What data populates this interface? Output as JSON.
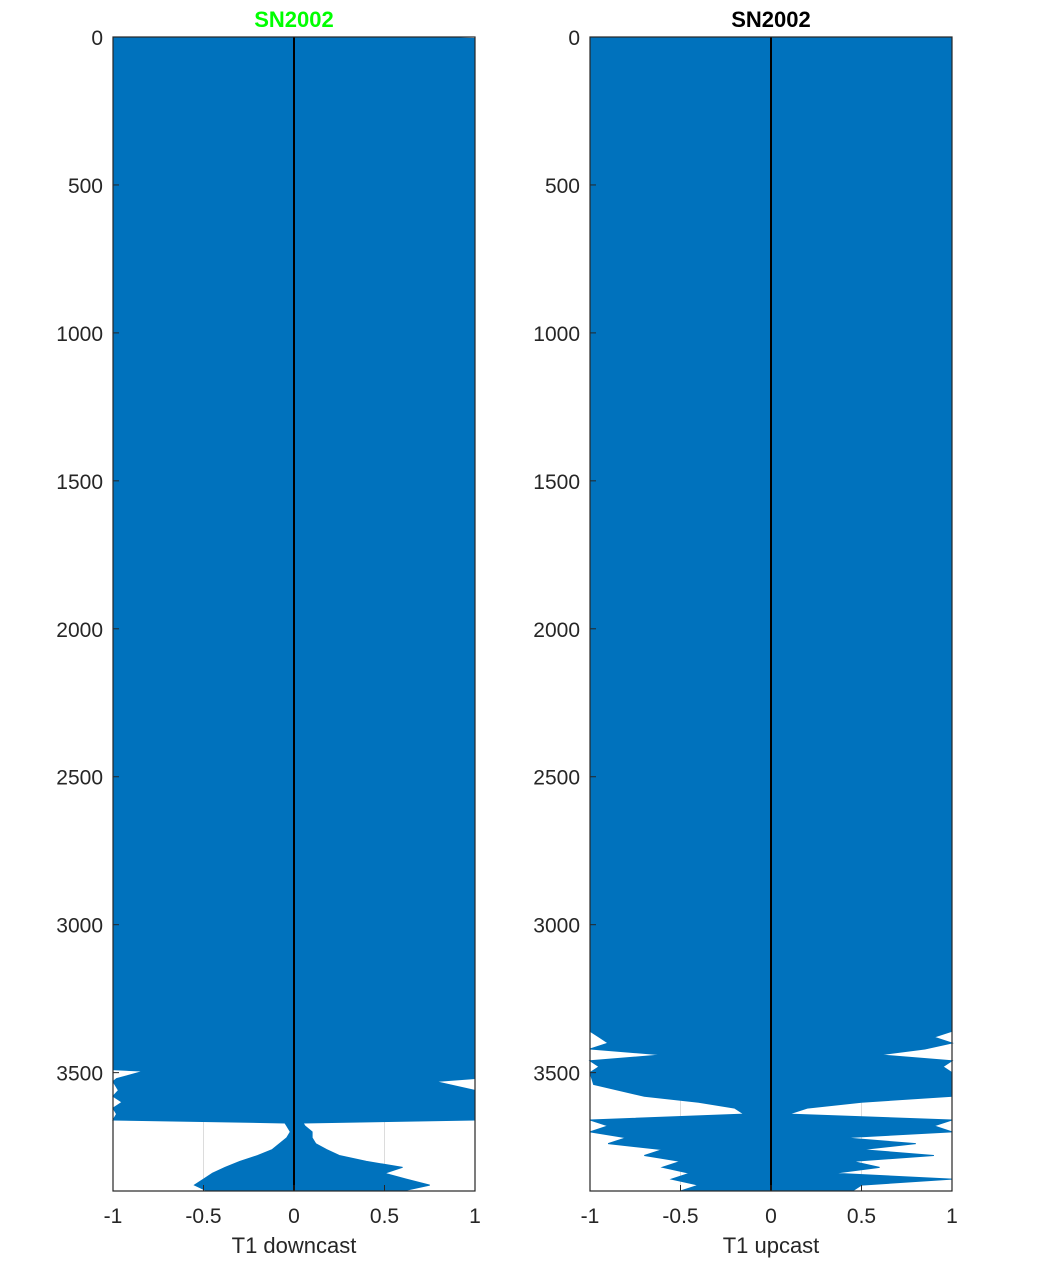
{
  "chart_data": [
    {
      "type": "area",
      "title": "SN2002",
      "title_color": "#00ff00",
      "xlabel": "T1 downcast",
      "ylabel": "",
      "xlim": [
        -1,
        1
      ],
      "ylim": [
        0,
        3900
      ],
      "y_reversed": true,
      "xticks": [
        -1,
        -0.5,
        0,
        0.5,
        1
      ],
      "xtick_labels": [
        "-1",
        "-0.5",
        "0",
        "0.5",
        "1"
      ],
      "yticks": [
        0,
        500,
        1000,
        1500,
        2000,
        2500,
        3000,
        3500
      ],
      "ytick_labels": [
        "0",
        "500",
        "1000",
        "1500",
        "2000",
        "2500",
        "3000",
        "3500"
      ],
      "grid": false,
      "fill_color": "#0072bd",
      "zero_line_color": "#000000",
      "series": [
        {
          "depth": [
            0,
            5,
            3490,
            3495,
            3520,
            3530,
            3560,
            3580,
            3600,
            3620,
            3640,
            3660,
            3670,
            3680,
            3690,
            3700,
            3720,
            3740,
            3760,
            3780,
            3800,
            3820,
            3840,
            3860,
            3880,
            3900
          ],
          "left": [
            -1,
            -1,
            -1,
            -0.83,
            -0.98,
            -1,
            -0.97,
            -1,
            -0.95,
            -1,
            -0.98,
            -1,
            -0.05,
            -0.04,
            -0.03,
            -0.02,
            -0.04,
            -0.08,
            -0.12,
            -0.2,
            -0.3,
            -0.38,
            -0.45,
            -0.5,
            -0.55,
            -0.48
          ],
          "right": [
            0.75,
            1,
            1,
            1,
            1,
            0.78,
            1,
            1,
            1,
            1,
            1,
            1,
            0.05,
            0.06,
            0.08,
            0.1,
            0.1,
            0.12,
            0.18,
            0.25,
            0.4,
            0.6,
            0.5,
            0.62,
            0.75,
            0.6
          ]
        }
      ]
    },
    {
      "type": "area",
      "title": "SN2002",
      "title_color": "#000000",
      "xlabel": "T1 upcast",
      "ylabel": "",
      "xlim": [
        -1,
        1
      ],
      "ylim": [
        0,
        3900
      ],
      "y_reversed": true,
      "xticks": [
        -1,
        -0.5,
        0,
        0.5,
        1
      ],
      "xtick_labels": [
        "-1",
        "-0.5",
        "0",
        "0.5",
        "1"
      ],
      "yticks": [
        0,
        500,
        1000,
        1500,
        2000,
        2500,
        3000,
        3500
      ],
      "ytick_labels": [
        "0",
        "500",
        "1000",
        "1500",
        "2000",
        "2500",
        "3000",
        "3500"
      ],
      "grid": false,
      "fill_color": "#0072bd",
      "zero_line_color": "#000000",
      "series": [
        {
          "depth": [
            0,
            3360,
            3380,
            3400,
            3420,
            3440,
            3460,
            3480,
            3500,
            3540,
            3580,
            3600,
            3620,
            3640,
            3660,
            3680,
            3700,
            3720,
            3740,
            3760,
            3780,
            3800,
            3820,
            3840,
            3860,
            3880,
            3900
          ],
          "left": [
            -1,
            -1,
            -0.95,
            -0.9,
            -1,
            -0.6,
            -1,
            -0.95,
            -1,
            -0.98,
            -0.7,
            -0.4,
            -0.2,
            -0.15,
            -1,
            -0.9,
            -1,
            -0.8,
            -0.9,
            -0.6,
            -0.7,
            -0.5,
            -0.6,
            -0.45,
            -0.55,
            -0.4,
            -0.5
          ],
          "right": [
            1,
            1,
            0.9,
            1,
            0.85,
            0.6,
            1,
            0.95,
            1,
            1,
            1,
            0.5,
            0.2,
            0.1,
            1,
            0.9,
            1,
            0.4,
            0.8,
            0.5,
            0.9,
            0.45,
            0.6,
            0.35,
            1,
            0.5,
            0.45
          ]
        }
      ]
    }
  ]
}
